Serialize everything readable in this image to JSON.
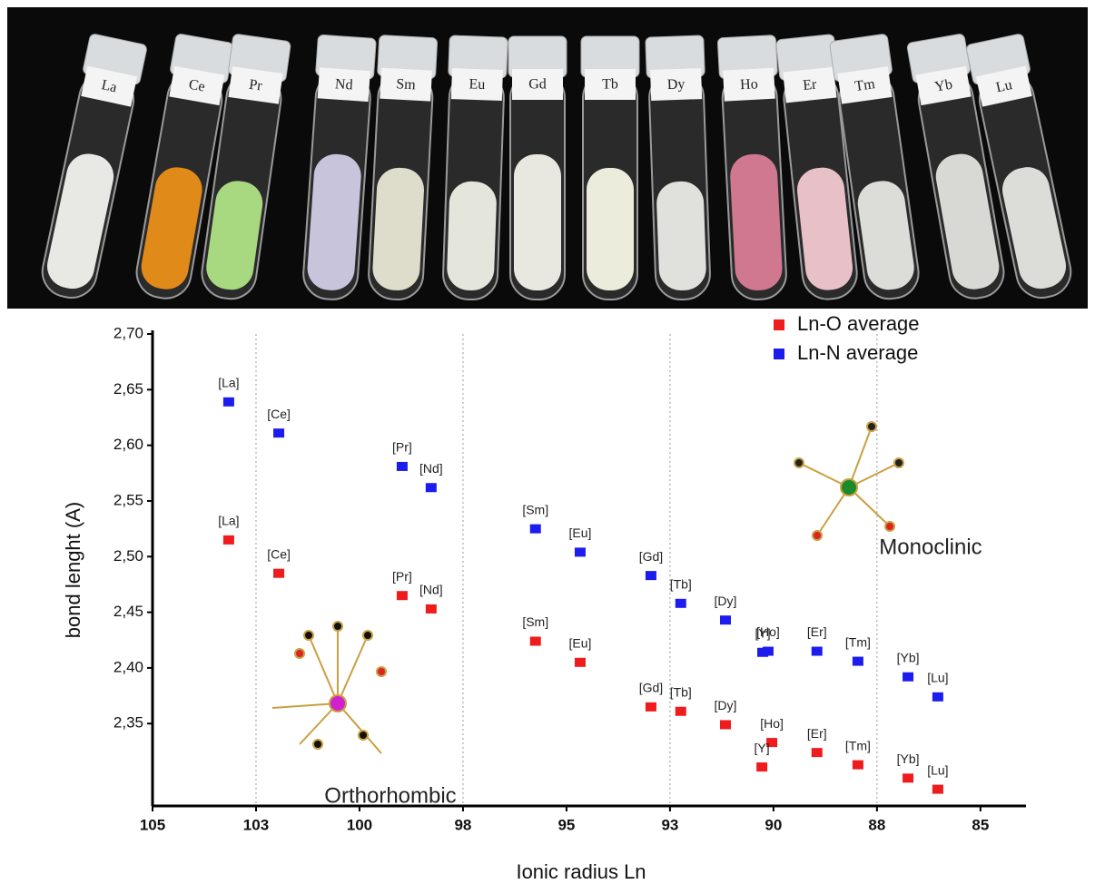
{
  "photo": {
    "tube_labels": [
      "La",
      "Ce",
      "Pr",
      "Nd",
      "Sm",
      "Eu",
      "Gd",
      "Tb",
      "Dy",
      "Ho",
      "Er",
      "Tm",
      "Yb",
      "Lu"
    ]
  },
  "chart_data": {
    "type": "scatter",
    "x_label": "Ionic radius Ln",
    "y_label": "bond lenght (A)",
    "xlim": [
      105,
      83.9
    ],
    "ylim": [
      2.276,
      2.7
    ],
    "xticks": [
      105,
      {
        "value": 102.5,
        "label": "103"
      },
      100,
      {
        "value": 97.5,
        "label": "98"
      },
      95,
      {
        "value": 92.5,
        "label": "93"
      },
      90,
      {
        "value": 87.5,
        "label": "88"
      },
      85
    ],
    "yticks": [
      {
        "value": 2.35,
        "label": "2,35"
      },
      {
        "value": 2.4,
        "label": "2,40"
      },
      {
        "value": 2.45,
        "label": "2,45"
      },
      {
        "value": 2.5,
        "label": "2,50"
      },
      {
        "value": 2.55,
        "label": "2,55"
      },
      {
        "value": 2.6,
        "label": "2,60"
      },
      {
        "value": 2.65,
        "label": "2,65"
      },
      {
        "value": 2.7,
        "label": "2,70"
      }
    ],
    "grid_x": [
      102.5,
      97.5,
      92.5,
      87.5
    ],
    "legend": "top-right",
    "annotations": [
      "Orthorhombic",
      "Monoclinic"
    ],
    "series": [
      {
        "name": "Ln-O average",
        "color": "#ee1c1c",
        "x": [
          103.16,
          101.95,
          98.97,
          98.27,
          95.75,
          94.67,
          92.96,
          92.24,
          91.16,
          90.04,
          90.28,
          88.95,
          87.96,
          86.75,
          86.03
        ],
        "values": [
          2.515,
          2.485,
          2.465,
          2.453,
          2.424,
          2.405,
          2.365,
          2.361,
          2.349,
          2.333,
          2.311,
          2.324,
          2.313,
          2.301,
          2.291
        ],
        "labels": [
          "[La]",
          "[Ce]",
          "[Pr]",
          "[Nd]",
          "[Sm]",
          "[Eu]",
          "[Gd]",
          "[Tb]",
          "[Dy]",
          "[Ho]",
          "[Y]",
          "[Er]",
          "[Tm]",
          "[Yb]",
          "[Lu]"
        ]
      },
      {
        "name": "Ln-N average",
        "color": "#1c1cee",
        "x": [
          103.16,
          101.95,
          98.97,
          98.27,
          95.75,
          94.67,
          92.96,
          92.24,
          91.16,
          90.26,
          90.13,
          88.95,
          87.96,
          86.75,
          86.03
        ],
        "values": [
          2.639,
          2.611,
          2.581,
          2.562,
          2.525,
          2.504,
          2.483,
          2.458,
          2.443,
          2.414,
          2.415,
          2.415,
          2.406,
          2.392,
          2.374
        ],
        "labels": [
          "[La]",
          "[Ce]",
          "[Pr]",
          "[Nd]",
          "[Sm]",
          "[Eu]",
          "[Gd]",
          "[Tb]",
          "[Dy]",
          "[Y]",
          "[Ho]",
          "[Er]",
          "[Tm]",
          "[Yb]",
          "[Lu]"
        ]
      }
    ]
  }
}
